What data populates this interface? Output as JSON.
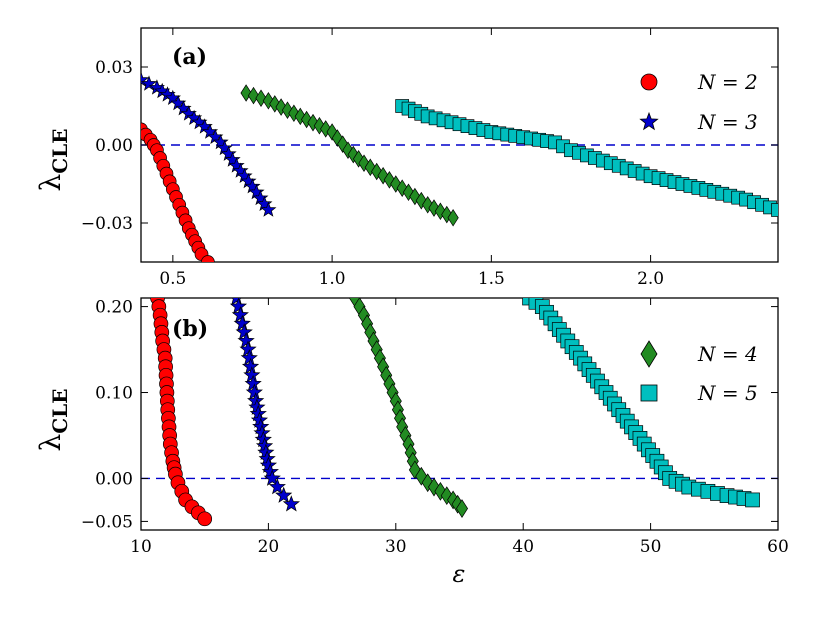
{
  "chart_data": [
    {
      "type": "scatter",
      "panel_label": "(a)",
      "ylabel_main": "λ",
      "ylabel_sub": "CLE",
      "xlim": [
        0.4,
        2.4
      ],
      "ylim": [
        -0.045,
        0.045
      ],
      "xticks": [
        0.5,
        1.0,
        1.5,
        2.0
      ],
      "xtick_labels": [
        "0.5",
        "1.0",
        "1.5",
        "2.0"
      ],
      "yticks": [
        0.03,
        0.0,
        -0.03
      ],
      "ytick_labels": [
        "0.03",
        "0.00",
        "−0.03"
      ],
      "reference_line": 0.0,
      "legend": {
        "location": "top-right",
        "entries": [
          "N = 2",
          "N = 3"
        ]
      },
      "series": [
        {
          "name": "N = 2",
          "marker": "circle",
          "color": "#ff0000",
          "x": [
            0.4,
            0.43,
            0.45,
            0.47,
            0.49,
            0.51,
            0.53,
            0.55,
            0.57,
            0.59,
            0.61
          ],
          "y": [
            0.006,
            0.002,
            -0.002,
            -0.008,
            -0.014,
            -0.02,
            -0.026,
            -0.032,
            -0.037,
            -0.042,
            -0.045
          ]
        },
        {
          "name": "N = 3",
          "marker": "star",
          "color": "#0000cc",
          "x": [
            0.4,
            0.45,
            0.5,
            0.55,
            0.6,
            0.65,
            0.7,
            0.75,
            0.8
          ],
          "y": [
            0.025,
            0.022,
            0.018,
            0.012,
            0.007,
            0.001,
            -0.008,
            -0.016,
            -0.025
          ]
        },
        {
          "name": "N = 4",
          "marker": "diamond",
          "color": "#228b22",
          "x": [
            0.73,
            0.8,
            0.9,
            1.0,
            1.05,
            1.1,
            1.2,
            1.3,
            1.38
          ],
          "y": [
            0.02,
            0.017,
            0.011,
            0.005,
            -0.002,
            -0.007,
            -0.015,
            -0.023,
            -0.028
          ]
        },
        {
          "name": "N = 5",
          "marker": "square",
          "color": "#00bfbf",
          "x": [
            1.22,
            1.3,
            1.4,
            1.5,
            1.6,
            1.7,
            1.75,
            1.8,
            1.9,
            2.0,
            2.1,
            2.2,
            2.3,
            2.4
          ],
          "y": [
            0.015,
            0.011,
            0.008,
            0.005,
            0.003,
            0.001,
            -0.002,
            -0.004,
            -0.008,
            -0.012,
            -0.015,
            -0.018,
            -0.021,
            -0.025
          ]
        }
      ]
    },
    {
      "type": "scatter",
      "panel_label": "(b)",
      "ylabel_main": "λ",
      "ylabel_sub": "CLE",
      "xlabel": "ε",
      "xlim": [
        10,
        60
      ],
      "ylim": [
        -0.06,
        0.21
      ],
      "xticks": [
        10,
        20,
        30,
        40,
        50,
        60
      ],
      "xtick_labels": [
        "10",
        "20",
        "30",
        "40",
        "50",
        "60"
      ],
      "yticks": [
        0.2,
        0.1,
        0.0,
        -0.05
      ],
      "ytick_labels": [
        "0.20",
        "0.10",
        "0.00",
        "−0.05"
      ],
      "reference_line": 0.0,
      "legend": {
        "location": "center-right",
        "entries": [
          "N = 4",
          "N = 5"
        ]
      },
      "series": [
        {
          "name": "N = 2",
          "marker": "circle",
          "color": "#ff0000",
          "x": [
            11.3,
            11.5,
            11.7,
            11.9,
            12.0,
            12.1,
            12.2,
            12.3,
            12.5,
            12.7,
            12.9,
            13.2,
            13.5,
            14.0,
            14.5,
            15.0
          ],
          "y": [
            0.21,
            0.19,
            0.16,
            0.14,
            0.11,
            0.08,
            0.06,
            0.04,
            0.02,
            0.005,
            -0.005,
            -0.015,
            -0.025,
            -0.033,
            -0.04,
            -0.047
          ]
        },
        {
          "name": "N = 3",
          "marker": "star",
          "color": "#0000cc",
          "x": [
            17.5,
            17.8,
            18.1,
            18.4,
            18.6,
            18.8,
            19.0,
            19.2,
            19.4,
            19.6,
            19.8,
            20.0,
            20.3,
            20.7,
            21.2,
            21.8
          ],
          "y": [
            0.21,
            0.19,
            0.17,
            0.15,
            0.13,
            0.11,
            0.09,
            0.075,
            0.06,
            0.045,
            0.03,
            0.015,
            0.0,
            -0.01,
            -0.02,
            -0.03
          ]
        },
        {
          "name": "N = 4",
          "marker": "diamond",
          "color": "#228b22",
          "x": [
            26.8,
            27.5,
            28.0,
            28.5,
            29.0,
            29.5,
            30.0,
            30.5,
            31.0,
            31.5,
            32.5,
            33.5,
            34.5,
            35.2
          ],
          "y": [
            0.21,
            0.19,
            0.17,
            0.15,
            0.13,
            0.11,
            0.09,
            0.06,
            0.04,
            0.01,
            -0.005,
            -0.015,
            -0.025,
            -0.035
          ]
        },
        {
          "name": "N = 5",
          "marker": "square",
          "color": "#00bfbf",
          "x": [
            40.5,
            41.5,
            42.5,
            43.5,
            44.5,
            45.5,
            46.5,
            47.5,
            48.5,
            49.5,
            50.5,
            51.5,
            53.0,
            54.5,
            56.0,
            58.0
          ],
          "y": [
            0.21,
            0.2,
            0.18,
            0.16,
            0.14,
            0.12,
            0.1,
            0.08,
            0.06,
            0.04,
            0.02,
            0.0,
            -0.01,
            -0.015,
            -0.02,
            -0.025
          ]
        }
      ]
    }
  ]
}
